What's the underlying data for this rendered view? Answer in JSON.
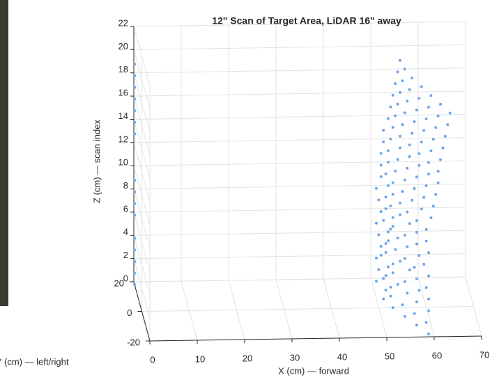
{
  "chart_data": {
    "type": "scatter3d",
    "title": "12\" Scan of Target Area, LiDAR 16\" away",
    "xlabel": "X (cm) — forward",
    "ylabel": "Y (cm) — left/right",
    "zlabel": "Z (cm) — scan index",
    "xlim": [
      0,
      70
    ],
    "ylim": [
      -20,
      20
    ],
    "zlim": [
      0,
      22
    ],
    "xticks": [
      0,
      10,
      20,
      30,
      40,
      50,
      60,
      70
    ],
    "yticks": [
      -20,
      0,
      20
    ],
    "zticks": [
      0,
      2,
      4,
      6,
      8,
      10,
      12,
      14,
      16,
      18,
      20,
      22
    ],
    "grid": true,
    "color": "#6fa6ea",
    "series": [
      {
        "x": [
          0,
          0,
          0,
          0,
          0,
          0,
          0,
          0,
          0,
          0,
          0,
          0,
          0,
          0,
          0,
          0
        ],
        "y": [
          18,
          18,
          18,
          18,
          18,
          18,
          18,
          18,
          18,
          18,
          18,
          18,
          18,
          18,
          18,
          18
        ],
        "z": [
          19,
          18,
          17,
          16,
          15,
          14,
          13,
          9,
          8,
          7,
          6,
          4,
          3,
          2,
          1,
          0
        ]
      },
      {
        "x": [
          51,
          52.5,
          51.5,
          53,
          55,
          57,
          59
        ],
        "y": [
          18,
          12,
          6,
          0,
          -6,
          -12,
          -18
        ],
        "z": [
          0,
          0,
          0,
          0,
          0,
          0,
          0
        ]
      },
      {
        "x": [
          51.5,
          52,
          53,
          52.5,
          54.5,
          56.5,
          58.5
        ],
        "y": [
          18,
          12,
          6,
          0,
          -6,
          -12,
          -18
        ],
        "z": [
          1,
          1,
          1,
          1,
          1,
          1,
          1
        ]
      },
      {
        "x": [
          51,
          53,
          52,
          54,
          55.5,
          57,
          59
        ],
        "y": [
          18,
          12,
          6,
          0,
          -6,
          -12,
          -18
        ],
        "z": [
          2,
          2,
          2,
          2,
          2,
          2,
          2
        ]
      },
      {
        "x": [
          52,
          51.5,
          53.5,
          53,
          55,
          57.5,
          59
        ],
        "y": [
          18,
          12,
          6,
          0,
          -6,
          -12,
          -18
        ],
        "z": [
          3,
          3,
          3,
          3,
          3,
          3,
          3
        ]
      },
      {
        "x": [
          51.5,
          52.5,
          52,
          54.5,
          56,
          57,
          58.5
        ],
        "y": [
          18,
          12,
          6,
          0,
          -6,
          -12,
          -18
        ],
        "z": [
          4,
          4,
          4,
          4,
          4,
          4,
          4
        ]
      },
      {
        "x": [
          51,
          53,
          52.5,
          53.5,
          55,
          56.5,
          59
        ],
        "y": [
          18,
          12,
          6,
          0,
          -6,
          -12,
          -18
        ],
        "z": [
          5,
          5,
          5,
          5,
          5,
          5,
          5
        ]
      },
      {
        "x": [
          52,
          52,
          53,
          54,
          55.5,
          57.5,
          58
        ],
        "y": [
          18,
          12,
          6,
          0,
          -6,
          -12,
          -18
        ],
        "z": [
          6,
          6,
          6,
          6,
          6,
          6,
          6
        ]
      },
      {
        "x": [
          51.5,
          52.5,
          53.5,
          53,
          55,
          57,
          59
        ],
        "y": [
          18,
          12,
          6,
          0,
          -6,
          -12,
          -18
        ],
        "z": [
          7,
          7,
          7,
          7,
          7,
          7,
          7
        ]
      },
      {
        "x": [
          51,
          52.5,
          53,
          54.5,
          56,
          57,
          58.5
        ],
        "y": [
          18,
          12,
          6,
          0,
          -6,
          -12,
          -18
        ],
        "z": [
          8,
          8,
          8,
          8,
          8,
          8,
          8
        ]
      },
      {
        "x": [
          52,
          53,
          53.5,
          54.5,
          55.5,
          57,
          58.5
        ],
        "y": [
          18,
          12,
          6,
          0,
          -6,
          -12,
          -18
        ],
        "z": [
          9,
          9,
          9,
          9,
          9,
          9,
          9
        ]
      },
      {
        "x": [
          52,
          52.5,
          53.5,
          55,
          56.5,
          58,
          59.5
        ],
        "y": [
          18,
          12,
          6,
          0,
          -6,
          -12,
          -18
        ],
        "z": [
          10,
          10,
          10,
          10,
          10,
          10,
          10
        ]
      },
      {
        "x": [
          52,
          53,
          54,
          55.5,
          57,
          58.5,
          60
        ],
        "y": [
          18,
          12,
          6,
          0,
          -6,
          -12,
          -18
        ],
        "z": [
          11,
          11,
          11,
          11,
          11,
          11,
          11
        ]
      },
      {
        "x": [
          52.5,
          53,
          54.5,
          56,
          57.5,
          59,
          60.5
        ],
        "y": [
          18,
          12,
          6,
          0,
          -6,
          -12,
          -18
        ],
        "z": [
          12,
          12,
          12,
          12,
          12,
          12,
          12
        ]
      },
      {
        "x": [
          52.5,
          53.5,
          55,
          56.5,
          58,
          59.5,
          61
        ],
        "y": [
          18,
          12,
          6,
          0,
          -6,
          -12,
          -18
        ],
        "z": [
          13,
          13,
          13,
          13,
          13,
          13,
          13
        ]
      },
      {
        "x": [
          53.5,
          54,
          55,
          56.5,
          58,
          59.5,
          61
        ],
        "y": [
          18,
          12,
          6,
          0,
          -6,
          -12,
          -18
        ],
        "z": [
          14,
          14,
          14,
          14,
          14,
          14,
          14
        ]
      },
      {
        "x": [
          54,
          54.5,
          55.5,
          57,
          58.5,
          60,
          61.5
        ],
        "y": [
          18,
          12,
          6,
          0,
          -6,
          -12,
          -18
        ],
        "z": [
          15,
          15,
          15,
          15,
          15,
          15,
          15
        ]
      },
      {
        "x": [
          54.5,
          55,
          56,
          57.5,
          59,
          60.5,
          62
        ],
        "y": [
          18,
          12,
          6,
          0,
          -6,
          -12,
          -18
        ],
        "z": [
          16,
          16,
          16,
          16,
          16,
          16,
          16
        ]
      },
      {
        "x": [
          55,
          55.5,
          56.5,
          58,
          59.5,
          61,
          62.5
        ],
        "y": [
          18,
          12,
          6,
          0,
          -6,
          -12,
          -18
        ],
        "z": [
          17,
          17,
          17,
          17,
          17,
          17,
          17
        ]
      },
      {
        "x": [
          55.5,
          56,
          57,
          58.5,
          60,
          61.5,
          63
        ],
        "y": [
          18,
          12,
          6,
          0,
          -6,
          -12,
          -18
        ],
        "z": [
          18,
          18,
          18,
          18,
          18,
          18,
          18
        ]
      },
      {
        "x": [
          56,
          56.5,
          57.5,
          59,
          60.5,
          62,
          63.5
        ],
        "y": [
          18,
          12,
          6,
          0,
          -6,
          -12,
          -18
        ],
        "z": [
          19,
          19,
          19,
          19,
          19,
          19,
          19
        ]
      }
    ]
  }
}
